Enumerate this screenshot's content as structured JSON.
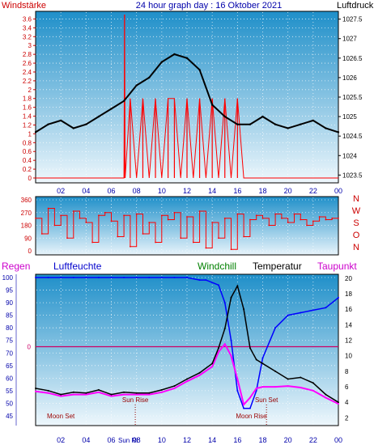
{
  "header": {
    "left_label": "Windstärke",
    "title": "24 hour graph day : 16 Oktober 2021",
    "right_label": "Luftdruck"
  },
  "x_ticks": [
    "02",
    "04",
    "06",
    "08",
    "10",
    "12",
    "14",
    "16",
    "18",
    "20",
    "22",
    "00"
  ],
  "x_ticks_bottom": [
    "02",
    "04",
    "06",
    "08",
    "10",
    "12",
    "14",
    "16",
    "18",
    "20",
    "22",
    "00"
  ],
  "sunrise_tick": "Sun Ri",
  "colors": {
    "frame": "#000000",
    "wind": "#ff0000",
    "pressure": "#000000",
    "blue_axis": "#0000aa",
    "red_axis": "#cc0000",
    "humidity": "#0000ff",
    "windchill": "#008000",
    "temperature": "#000000",
    "dewpoint": "#ff00ff",
    "sky_top": "#1f8fc9",
    "sky_bottom": "#eef7fc"
  },
  "chart_data": [
    {
      "type": "line",
      "title": "24 hour graph day : 16 Oktober 2021",
      "series": [
        {
          "name": "Luftdruck",
          "axis": "right",
          "x": [
            0,
            1,
            2,
            3,
            4,
            5,
            6,
            7,
            8,
            9,
            10,
            11,
            12,
            13,
            14,
            15,
            16,
            17,
            18,
            19,
            20,
            21,
            22,
            23,
            24
          ],
          "values": [
            1024.6,
            1024.8,
            1024.9,
            1024.7,
            1024.8,
            1025.0,
            1025.2,
            1025.4,
            1025.8,
            1026.0,
            1026.4,
            1026.6,
            1026.5,
            1026.2,
            1025.3,
            1025.0,
            1024.8,
            1024.8,
            1025.0,
            1024.8,
            1024.7,
            1024.8,
            1024.9,
            1024.7,
            1024.6
          ]
        },
        {
          "name": "Windstärke",
          "axis": "left",
          "x": [
            0,
            1,
            2,
            3,
            4,
            5,
            6,
            7,
            7.05,
            7.1,
            7.5,
            8,
            8.5,
            9,
            9.5,
            10,
            10.5,
            11,
            11.5,
            12,
            12.5,
            13,
            13.5,
            14,
            14.5,
            15,
            15.5,
            16,
            16.5,
            17,
            18,
            19,
            20,
            21,
            22,
            23,
            24
          ],
          "values": [
            0,
            0,
            0,
            0,
            0,
            0,
            0,
            0,
            3.7,
            0,
            1.8,
            0,
            1.8,
            0,
            1.8,
            0,
            1.8,
            1.8,
            0,
            1.8,
            0,
            1.8,
            0,
            1.8,
            0,
            1.8,
            0,
            1.8,
            0,
            0,
            0,
            0,
            0,
            0,
            0,
            0,
            0
          ]
        }
      ],
      "left_ticks": [
        "0",
        "0.2",
        "0.4",
        "0.6",
        "0.8",
        "1",
        "1.2",
        "1.4",
        "1.6",
        "1.8",
        "2",
        "2.2",
        "2.4",
        "2.6",
        "2.8",
        "3",
        "3.2",
        "3.4",
        "3.6"
      ],
      "right_ticks": [
        "1023.5",
        "1024",
        "1024.5",
        "1025",
        "1025.5",
        "1026",
        "1026.5",
        "1027",
        "1027.5"
      ],
      "ylim_left": [
        0,
        3.7
      ],
      "ylim_right": [
        1023.3,
        1027.7
      ],
      "xlim": [
        0,
        24
      ]
    },
    {
      "type": "line",
      "series": [
        {
          "name": "Windrichtung",
          "x": [
            0,
            0.5,
            1,
            1.5,
            2,
            2.5,
            3,
            3.5,
            4,
            4.5,
            5,
            5.5,
            6,
            6.5,
            7,
            7.5,
            8,
            8.5,
            9,
            9.5,
            10,
            10.5,
            11,
            11.5,
            12,
            12.5,
            13,
            13.5,
            14,
            14.5,
            15,
            15.5,
            16,
            16.5,
            17,
            17.5,
            18,
            18.5,
            19,
            19.5,
            20,
            20.5,
            21,
            21.5,
            22,
            22.5,
            23,
            23.5,
            24
          ],
          "values": [
            230,
            120,
            300,
            180,
            250,
            90,
            280,
            230,
            200,
            60,
            250,
            270,
            210,
            100,
            250,
            30,
            260,
            120,
            200,
            60,
            250,
            220,
            270,
            90,
            240,
            60,
            280,
            20,
            200,
            90,
            230,
            10,
            260,
            100,
            220,
            250,
            230,
            180,
            260,
            230,
            200,
            260,
            220,
            180,
            210,
            240,
            220,
            230,
            230
          ]
        }
      ],
      "left_ticks": [
        "0",
        "90",
        "180",
        "270",
        "360"
      ],
      "right_letters": [
        "N",
        "W",
        "S",
        "O",
        "N"
      ],
      "ylim": [
        0,
        360
      ]
    },
    {
      "type": "line",
      "legend": [
        "Regen",
        "Luftfeuchte",
        "Windchill",
        "Temperatur",
        "Taupunkt"
      ],
      "series": [
        {
          "name": "Luftfeuchte",
          "axis": "left",
          "x": [
            0,
            1,
            2,
            3,
            4,
            5,
            6,
            7,
            8,
            9,
            10,
            11,
            12,
            13,
            13.5,
            14,
            14.5,
            15,
            15.5,
            16,
            16.5,
            17,
            17.5,
            18,
            19,
            20,
            21,
            22,
            23,
            24
          ],
          "values": [
            100,
            100,
            100,
            100,
            100,
            100,
            100,
            100,
            100,
            100,
            100,
            100,
            100,
            99,
            99,
            98,
            97,
            90,
            75,
            55,
            48,
            48,
            55,
            68,
            80,
            85,
            86,
            87,
            88,
            92
          ]
        },
        {
          "name": "Temperatur",
          "axis": "right",
          "x": [
            0,
            1,
            2,
            3,
            4,
            5,
            6,
            7,
            8,
            9,
            10,
            11,
            12,
            13,
            14,
            14.5,
            15,
            15.5,
            16,
            16.5,
            17,
            17.5,
            18,
            19,
            20,
            21,
            22,
            23,
            24
          ],
          "values": [
            5.8,
            5.5,
            5.0,
            5.3,
            5.2,
            5.6,
            5.0,
            5.3,
            5.2,
            5.2,
            5.6,
            6.1,
            7.0,
            7.8,
            9.0,
            11.0,
            13.5,
            17.5,
            19.0,
            16.0,
            11.0,
            9.5,
            9.0,
            8.0,
            7.0,
            7.2,
            6.5,
            5.0,
            4.0
          ]
        },
        {
          "name": "Taupunkt",
          "axis": "right",
          "x": [
            0,
            1,
            2,
            3,
            4,
            5,
            6,
            7,
            8,
            9,
            10,
            11,
            12,
            13,
            14,
            14.5,
            15,
            15.5,
            16,
            16.5,
            17,
            17.5,
            18,
            19,
            20,
            21,
            22,
            23,
            24
          ],
          "values": [
            5.4,
            5.2,
            4.8,
            5.0,
            5.0,
            5.3,
            4.8,
            5.0,
            5.0,
            5.0,
            5.3,
            5.8,
            6.7,
            7.5,
            8.6,
            10.5,
            11.5,
            10.0,
            7.0,
            3.7,
            4.6,
            5.8,
            6.0,
            6.0,
            6.1,
            5.9,
            5.5,
            4.6,
            3.8
          ]
        }
      ],
      "regen_value": "0",
      "left_ticks": [
        "45",
        "50",
        "55",
        "60",
        "65",
        "70",
        "75",
        "80",
        "85",
        "90",
        "95",
        "100"
      ],
      "right_ticks": [
        "2",
        "4",
        "6",
        "8",
        "10",
        "12",
        "14",
        "16",
        "18",
        "20"
      ],
      "ylim_left": [
        45,
        100
      ],
      "ylim_right": [
        1,
        20.5
      ],
      "annotations": [
        {
          "text": "Moon Set",
          "x": 2.0
        },
        {
          "text": "Sun Rise",
          "x": 7.9
        },
        {
          "text": "Sun Set",
          "x": 18.3
        },
        {
          "text": "Moon Rise",
          "x": 17.1
        }
      ]
    }
  ]
}
